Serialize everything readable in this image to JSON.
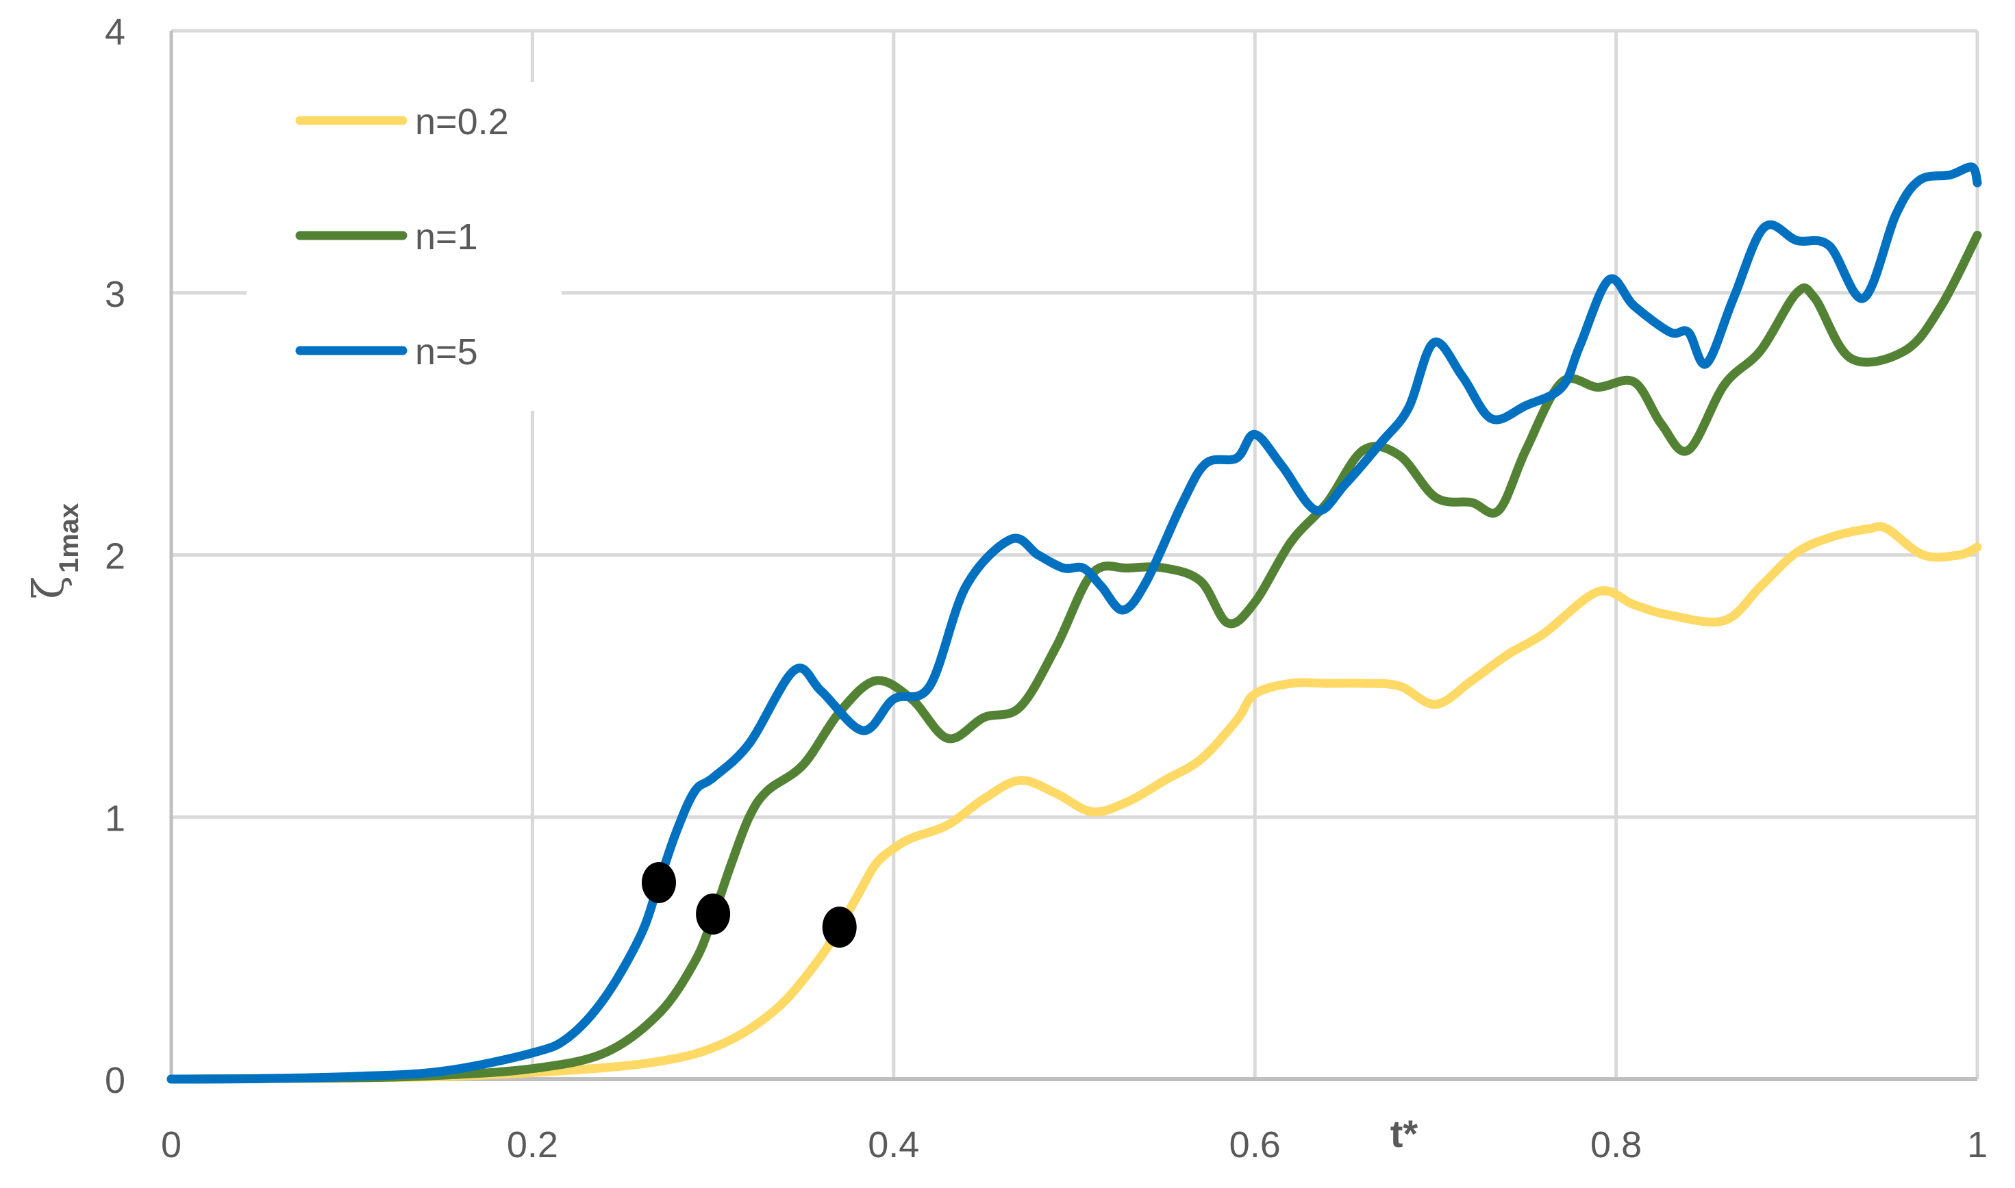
{
  "chart_data": {
    "type": "line",
    "title": "",
    "xlabel": "t*",
    "ylabel": "ζ1max",
    "ylabel_symbol": "ζ",
    "ylabel_subscript": "1max",
    "xlim": [
      0,
      1
    ],
    "ylim": [
      0,
      4
    ],
    "x_ticks": [
      "0",
      "0.2",
      "0.4",
      "0.6",
      "0.8",
      "1"
    ],
    "y_ticks": [
      "0",
      "1",
      "2",
      "3",
      "4"
    ],
    "grid": true,
    "legend_position": "upper-left",
    "series": [
      {
        "name": "n=0.2",
        "color": "#FFD966",
        "x": [
          0,
          0.1,
          0.15,
          0.2,
          0.25,
          0.28,
          0.3,
          0.32,
          0.34,
          0.36,
          0.37,
          0.38,
          0.39,
          0.4,
          0.41,
          0.43,
          0.45,
          0.47,
          0.49,
          0.51,
          0.53,
          0.55,
          0.57,
          0.59,
          0.6,
          0.62,
          0.64,
          0.66,
          0.68,
          0.7,
          0.72,
          0.74,
          0.76,
          0.79,
          0.81,
          0.83,
          0.86,
          0.88,
          0.9,
          0.92,
          0.94,
          0.95,
          0.97,
          0.99,
          1.0
        ],
        "y": [
          0,
          0.005,
          0.01,
          0.025,
          0.05,
          0.08,
          0.12,
          0.19,
          0.3,
          0.47,
          0.58,
          0.7,
          0.82,
          0.88,
          0.92,
          0.97,
          1.07,
          1.14,
          1.09,
          1.02,
          1.06,
          1.14,
          1.22,
          1.37,
          1.47,
          1.51,
          1.51,
          1.51,
          1.5,
          1.43,
          1.52,
          1.62,
          1.7,
          1.86,
          1.81,
          1.77,
          1.75,
          1.88,
          2.01,
          2.07,
          2.1,
          2.1,
          2.0,
          2.0,
          2.03
        ]
      },
      {
        "name": "n=1",
        "color": "#548235",
        "x": [
          0,
          0.1,
          0.15,
          0.2,
          0.24,
          0.27,
          0.29,
          0.3,
          0.31,
          0.32,
          0.33,
          0.35,
          0.37,
          0.39,
          0.41,
          0.43,
          0.45,
          0.47,
          0.49,
          0.51,
          0.53,
          0.55,
          0.57,
          0.585,
          0.6,
          0.62,
          0.64,
          0.66,
          0.68,
          0.7,
          0.72,
          0.735,
          0.75,
          0.77,
          0.79,
          0.81,
          0.825,
          0.84,
          0.86,
          0.88,
          0.9,
          0.91,
          0.93,
          0.96,
          0.98,
          1.0
        ],
        "y": [
          0,
          0.005,
          0.015,
          0.04,
          0.1,
          0.25,
          0.45,
          0.62,
          0.82,
          1.0,
          1.1,
          1.2,
          1.4,
          1.52,
          1.45,
          1.3,
          1.38,
          1.42,
          1.65,
          1.93,
          1.95,
          1.95,
          1.9,
          1.74,
          1.82,
          2.05,
          2.2,
          2.4,
          2.38,
          2.22,
          2.2,
          2.17,
          2.4,
          2.66,
          2.64,
          2.66,
          2.5,
          2.4,
          2.65,
          2.78,
          3.0,
          2.98,
          2.75,
          2.78,
          2.95,
          3.22
        ]
      },
      {
        "name": "n=5",
        "color": "#0070C0",
        "x": [
          0,
          0.05,
          0.1,
          0.15,
          0.2,
          0.22,
          0.24,
          0.26,
          0.27,
          0.28,
          0.29,
          0.3,
          0.32,
          0.345,
          0.36,
          0.383,
          0.4,
          0.42,
          0.44,
          0.465,
          0.48,
          0.494,
          0.505,
          0.515,
          0.527,
          0.54,
          0.56,
          0.573,
          0.59,
          0.6,
          0.615,
          0.634,
          0.65,
          0.67,
          0.685,
          0.699,
          0.715,
          0.731,
          0.75,
          0.77,
          0.78,
          0.796,
          0.81,
          0.83,
          0.84,
          0.85,
          0.865,
          0.882,
          0.9,
          0.918,
          0.937,
          0.955,
          0.968,
          0.985,
          0.997,
          1.0
        ],
        "y": [
          0,
          0.002,
          0.01,
          0.03,
          0.1,
          0.16,
          0.31,
          0.55,
          0.75,
          0.95,
          1.1,
          1.15,
          1.28,
          1.56,
          1.48,
          1.33,
          1.45,
          1.5,
          1.88,
          2.06,
          2.0,
          1.95,
          1.95,
          1.88,
          1.79,
          1.9,
          2.2,
          2.35,
          2.37,
          2.46,
          2.34,
          2.17,
          2.27,
          2.43,
          2.56,
          2.81,
          2.68,
          2.52,
          2.57,
          2.64,
          2.8,
          3.05,
          2.95,
          2.85,
          2.85,
          2.73,
          2.98,
          3.25,
          3.2,
          3.18,
          2.98,
          3.3,
          3.43,
          3.45,
          3.48,
          3.42
        ]
      }
    ],
    "markers": [
      {
        "series": "n=5",
        "x": 0.27,
        "y": 0.75
      },
      {
        "series": "n=1",
        "x": 0.3,
        "y": 0.63
      },
      {
        "series": "n=0.2",
        "x": 0.37,
        "y": 0.58
      }
    ]
  },
  "legend": {
    "items": [
      {
        "label": "n=0.2",
        "color": "#FFD966"
      },
      {
        "label": "n=1",
        "color": "#548235"
      },
      {
        "label": "n=5",
        "color": "#0070C0"
      }
    ]
  },
  "colors": {
    "grid": "#D9D9D9",
    "axis": "#BFBFBF",
    "text": "#595959",
    "marker": "#000000"
  }
}
